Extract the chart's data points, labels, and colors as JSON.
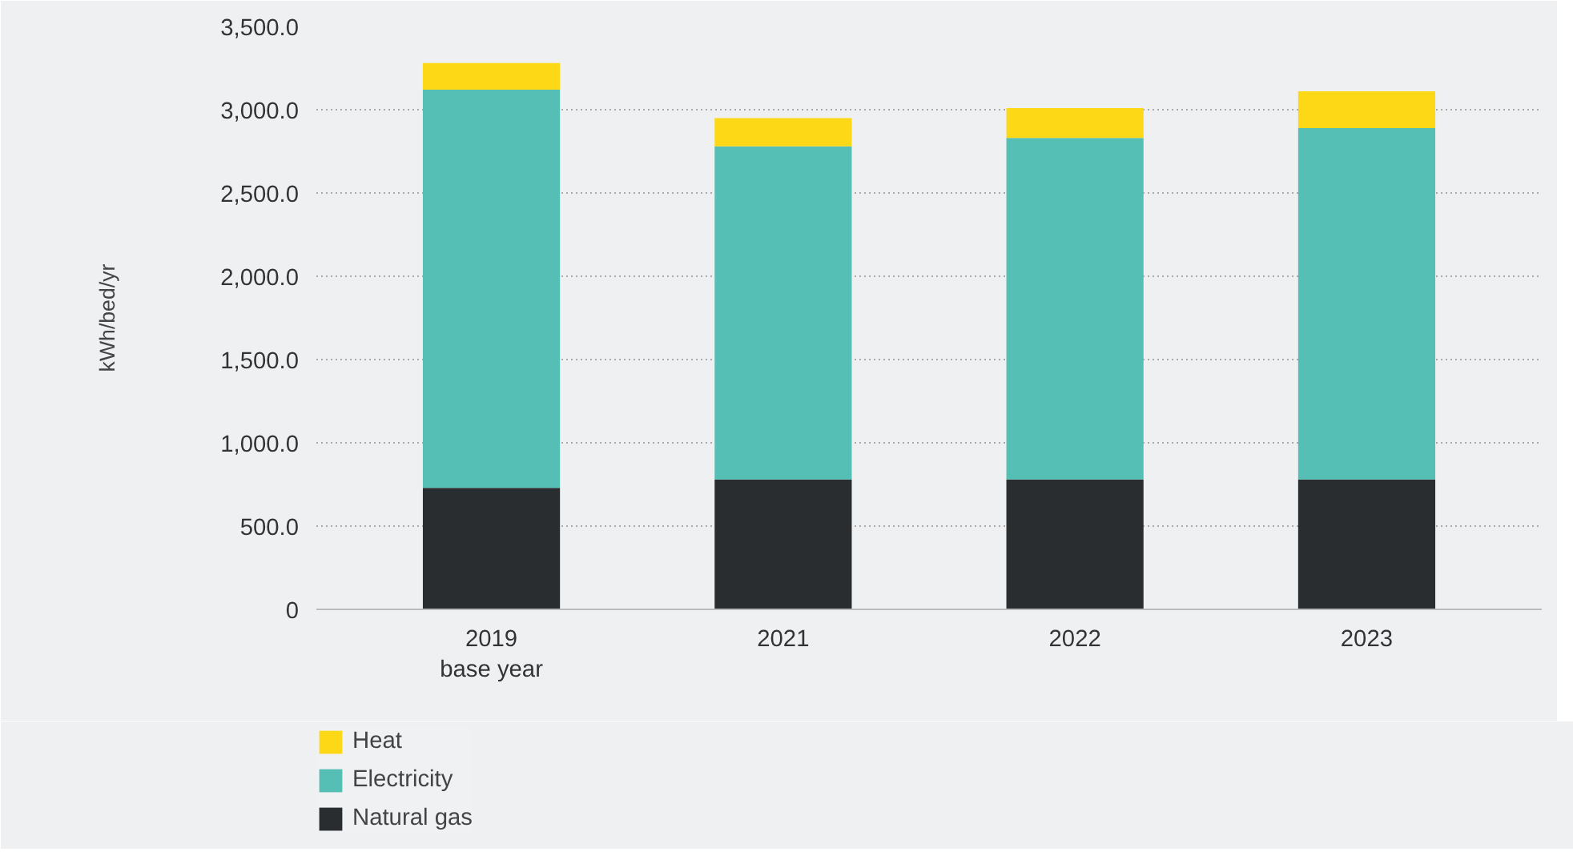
{
  "chart_data": {
    "type": "bar",
    "stacked": true,
    "ylabel": "kWh/bed/yr",
    "categories": [
      "2019\nbase year",
      "2021",
      "2022",
      "2023"
    ],
    "series": [
      {
        "name": "Natural gas",
        "color": "#2a2d30",
        "values": [
          730,
          780,
          780,
          780
        ]
      },
      {
        "name": "Electricity",
        "color": "#56bfb5",
        "values": [
          2390,
          2000,
          2050,
          2110
        ]
      },
      {
        "name": "Heat",
        "color": "#fdd816",
        "values": [
          160,
          170,
          180,
          220
        ]
      }
    ],
    "ylim": [
      0,
      3500
    ],
    "yticks": [
      0,
      {
        "value": 500,
        "label": "500.0"
      },
      {
        "value": 1000,
        "label": "1,000.0"
      },
      {
        "value": 1500,
        "label": "1,500.0"
      },
      {
        "value": 2000,
        "label": "2,000.0"
      },
      {
        "value": 2500,
        "label": "2,500.0"
      },
      {
        "value": 3000,
        "label": "3,000.0"
      },
      {
        "value": 3500,
        "label": "3,500.0"
      }
    ],
    "grid": "y",
    "legend": "bottom left"
  }
}
